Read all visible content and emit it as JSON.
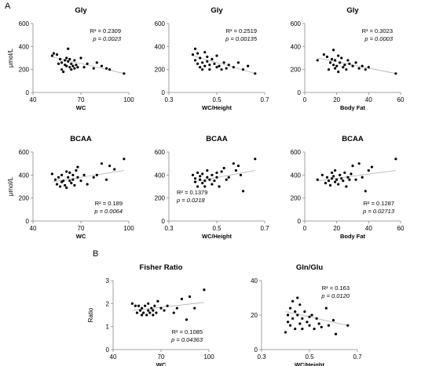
{
  "labels": {
    "panel_a": "A",
    "panel_b": "B"
  },
  "chart_data": [
    {
      "type": "scatter",
      "title": "Gly",
      "xlabel": "WC",
      "ylabel": "µmol/L",
      "xlim": [
        40,
        100
      ],
      "ylim": [
        0,
        600
      ],
      "xticks": [
        40,
        70,
        100
      ],
      "yticks": [
        0,
        200,
        400,
        600
      ],
      "annotation": {
        "r2": "R² = 0.2309",
        "p": "p = 0.0023",
        "position": "top-right"
      },
      "trend": {
        "x": [
          52,
          97
        ],
        "y": [
          310,
          165
        ]
      },
      "points": {
        "x": [
          52,
          53,
          55,
          56,
          57,
          58,
          58,
          59,
          60,
          60,
          61,
          61,
          62,
          62,
          63,
          63,
          64,
          64,
          65,
          66,
          66,
          67,
          68,
          70,
          72,
          74,
          78,
          80,
          83,
          86,
          88,
          97
        ],
        "y": [
          320,
          340,
          330,
          250,
          290,
          260,
          200,
          180,
          280,
          240,
          300,
          230,
          380,
          270,
          220,
          290,
          250,
          200,
          230,
          280,
          210,
          240,
          220,
          300,
          220,
          250,
          210,
          260,
          230,
          210,
          200,
          165
        ]
      }
    },
    {
      "type": "scatter",
      "title": "Gly",
      "xlabel": "WC/Height",
      "ylabel": "",
      "xlim": [
        0.3,
        0.7
      ],
      "ylim": [
        0,
        600
      ],
      "xticks": [
        0.3,
        0.5,
        0.7
      ],
      "yticks": [
        0,
        200,
        400,
        600
      ],
      "annotation": {
        "r2": "R² = 0.2519",
        "p": "p = 0.00135",
        "position": "top-right"
      },
      "trend": {
        "x": [
          0.4,
          0.66
        ],
        "y": [
          320,
          165
        ]
      },
      "points": {
        "x": [
          0.4,
          0.41,
          0.41,
          0.42,
          0.42,
          0.43,
          0.43,
          0.44,
          0.44,
          0.45,
          0.45,
          0.46,
          0.46,
          0.47,
          0.47,
          0.48,
          0.49,
          0.5,
          0.5,
          0.51,
          0.52,
          0.53,
          0.54,
          0.55,
          0.57,
          0.59,
          0.61,
          0.63,
          0.66
        ],
        "y": [
          330,
          280,
          380,
          250,
          340,
          220,
          300,
          260,
          200,
          350,
          230,
          310,
          270,
          240,
          200,
          290,
          250,
          220,
          320,
          230,
          200,
          260,
          210,
          240,
          220,
          260,
          200,
          230,
          165
        ]
      }
    },
    {
      "type": "scatter",
      "title": "Gly",
      "xlabel": "Body Fat",
      "ylabel": "",
      "xlim": [
        0,
        60
      ],
      "ylim": [
        0,
        600
      ],
      "xticks": [
        0,
        20,
        40,
        60
      ],
      "yticks": [
        0,
        200,
        400,
        600
      ],
      "annotation": {
        "r2": "R² = 0.3023",
        "p": "p = 0.0003",
        "position": "top-right"
      },
      "trend": {
        "x": [
          8,
          57
        ],
        "y": [
          300,
          165
        ]
      },
      "points": {
        "x": [
          8,
          12,
          14,
          15,
          16,
          17,
          18,
          18,
          19,
          19,
          20,
          21,
          21,
          22,
          23,
          24,
          25,
          26,
          27,
          28,
          30,
          32,
          34,
          36,
          38,
          40,
          57
        ],
        "y": [
          280,
          330,
          310,
          200,
          260,
          290,
          240,
          370,
          210,
          280,
          230,
          320,
          180,
          260,
          300,
          220,
          240,
          200,
          280,
          250,
          230,
          260,
          210,
          230,
          200,
          220,
          165
        ]
      }
    },
    {
      "type": "scatter",
      "title": "BCAA",
      "xlabel": "WC",
      "ylabel": "µmol/L",
      "xlim": [
        40,
        100
      ],
      "ylim": [
        0,
        600
      ],
      "xticks": [
        40,
        70,
        100
      ],
      "yticks": [
        0,
        200,
        400,
        600
      ],
      "annotation": {
        "r2": "R² = 0.189",
        "p": "p = 0.0064",
        "position": "bottom-right"
      },
      "trend": {
        "x": [
          52,
          97
        ],
        "y": [
          340,
          440
        ]
      },
      "points": {
        "x": [
          52,
          54,
          55,
          56,
          57,
          58,
          58,
          59,
          60,
          61,
          61,
          62,
          63,
          63,
          64,
          65,
          65,
          66,
          67,
          68,
          68,
          70,
          72,
          74,
          78,
          80,
          83,
          86,
          88,
          91,
          97
        ],
        "y": [
          410,
          360,
          320,
          380,
          300,
          340,
          400,
          350,
          310,
          430,
          290,
          380,
          350,
          420,
          330,
          400,
          360,
          310,
          440,
          380,
          470,
          350,
          400,
          320,
          380,
          400,
          500,
          360,
          480,
          450,
          540
        ]
      }
    },
    {
      "type": "scatter",
      "title": "BCAA",
      "xlabel": "WC/Height",
      "ylabel": "",
      "xlim": [
        0.3,
        0.7
      ],
      "ylim": [
        0,
        600
      ],
      "xticks": [
        0.3,
        0.5,
        0.7
      ],
      "yticks": [
        0,
        200,
        400,
        600
      ],
      "annotation": {
        "r2": "R² = 0.1379",
        "p": "p = 0.0218",
        "position": "bottom-left"
      },
      "trend": {
        "x": [
          0.4,
          0.66
        ],
        "y": [
          340,
          440
        ]
      },
      "points": {
        "x": [
          0.4,
          0.41,
          0.41,
          0.42,
          0.42,
          0.43,
          0.43,
          0.44,
          0.44,
          0.45,
          0.45,
          0.46,
          0.46,
          0.47,
          0.48,
          0.48,
          0.49,
          0.5,
          0.5,
          0.51,
          0.52,
          0.53,
          0.54,
          0.55,
          0.57,
          0.58,
          0.59,
          0.6,
          0.61,
          0.66
        ],
        "y": [
          400,
          340,
          370,
          300,
          420,
          360,
          390,
          330,
          410,
          350,
          300,
          380,
          440,
          360,
          320,
          400,
          350,
          380,
          420,
          300,
          430,
          460,
          360,
          380,
          500,
          440,
          480,
          400,
          260,
          540
        ]
      }
    },
    {
      "type": "scatter",
      "title": "BCAA",
      "xlabel": "Body Fat",
      "ylabel": "",
      "xlim": [
        0,
        60
      ],
      "ylim": [
        0,
        600
      ],
      "xticks": [
        0,
        20,
        40,
        60
      ],
      "yticks": [
        0,
        200,
        400,
        600
      ],
      "annotation": {
        "r2": "R² = 0.1287",
        "p": "p = 0.02713",
        "position": "bottom-right"
      },
      "trend": {
        "x": [
          8,
          57
        ],
        "y": [
          350,
          440
        ]
      },
      "points": {
        "x": [
          8,
          11,
          13,
          14,
          15,
          16,
          17,
          17,
          18,
          19,
          19,
          20,
          21,
          22,
          23,
          24,
          25,
          26,
          27,
          28,
          29,
          30,
          32,
          34,
          36,
          38,
          40,
          42,
          57
        ],
        "y": [
          360,
          400,
          330,
          380,
          350,
          310,
          420,
          370,
          390,
          340,
          440,
          360,
          320,
          400,
          370,
          350,
          420,
          300,
          380,
          360,
          410,
          480,
          360,
          500,
          380,
          260,
          440,
          470,
          540
        ]
      }
    },
    {
      "type": "scatter",
      "title": "Fisher Ratio",
      "xlabel": "WC",
      "ylabel": "Ratio",
      "xlim": [
        40,
        100
      ],
      "ylim": [
        0,
        3
      ],
      "xticks": [
        40,
        70,
        100
      ],
      "yticks": [
        0,
        1,
        2,
        3
      ],
      "annotation": {
        "r2": "R² = 0.1085",
        "p": "p = 0.04363",
        "position": "bottom-right"
      },
      "trend": {
        "x": [
          52,
          97
        ],
        "y": [
          1.7,
          2.05
        ]
      },
      "points": {
        "x": [
          52,
          54,
          55,
          56,
          57,
          58,
          58,
          59,
          60,
          61,
          62,
          62,
          63,
          64,
          65,
          65,
          66,
          67,
          68,
          70,
          72,
          74,
          78,
          80,
          83,
          86,
          88,
          91,
          97
        ],
        "y": [
          2.0,
          1.9,
          1.6,
          1.9,
          1.7,
          1.5,
          1.8,
          1.6,
          1.9,
          1.5,
          1.7,
          2.0,
          1.6,
          1.8,
          1.5,
          1.7,
          1.9,
          1.6,
          2.1,
          1.8,
          1.7,
          1.9,
          1.6,
          1.8,
          2.2,
          1.3,
          2.3,
          1.8,
          2.6
        ]
      }
    },
    {
      "type": "scatter",
      "title": "Gln/Glu",
      "xlabel": "WC/Height",
      "ylabel": "",
      "xlim": [
        0.3,
        0.7
      ],
      "ylim": [
        0,
        40
      ],
      "xticks": [
        0.3,
        0.5,
        0.7
      ],
      "yticks": [
        0,
        20,
        40
      ],
      "annotation": {
        "r2": "R² = 0.163",
        "p": "p = 0.0120",
        "position": "top-right"
      },
      "trend": {
        "x": [
          0.4,
          0.66
        ],
        "y": [
          22,
          14
        ]
      },
      "points": {
        "x": [
          0.4,
          0.41,
          0.41,
          0.42,
          0.42,
          0.43,
          0.43,
          0.44,
          0.44,
          0.45,
          0.45,
          0.46,
          0.46,
          0.47,
          0.47,
          0.48,
          0.49,
          0.5,
          0.5,
          0.51,
          0.52,
          0.53,
          0.54,
          0.55,
          0.57,
          0.58,
          0.6,
          0.61,
          0.66
        ],
        "y": [
          10,
          20,
          16,
          24,
          14,
          28,
          18,
          22,
          12,
          30,
          20,
          15,
          26,
          18,
          12,
          22,
          16,
          19,
          14,
          20,
          12,
          18,
          15,
          13,
          24,
          14,
          17,
          9,
          14
        ]
      }
    }
  ]
}
